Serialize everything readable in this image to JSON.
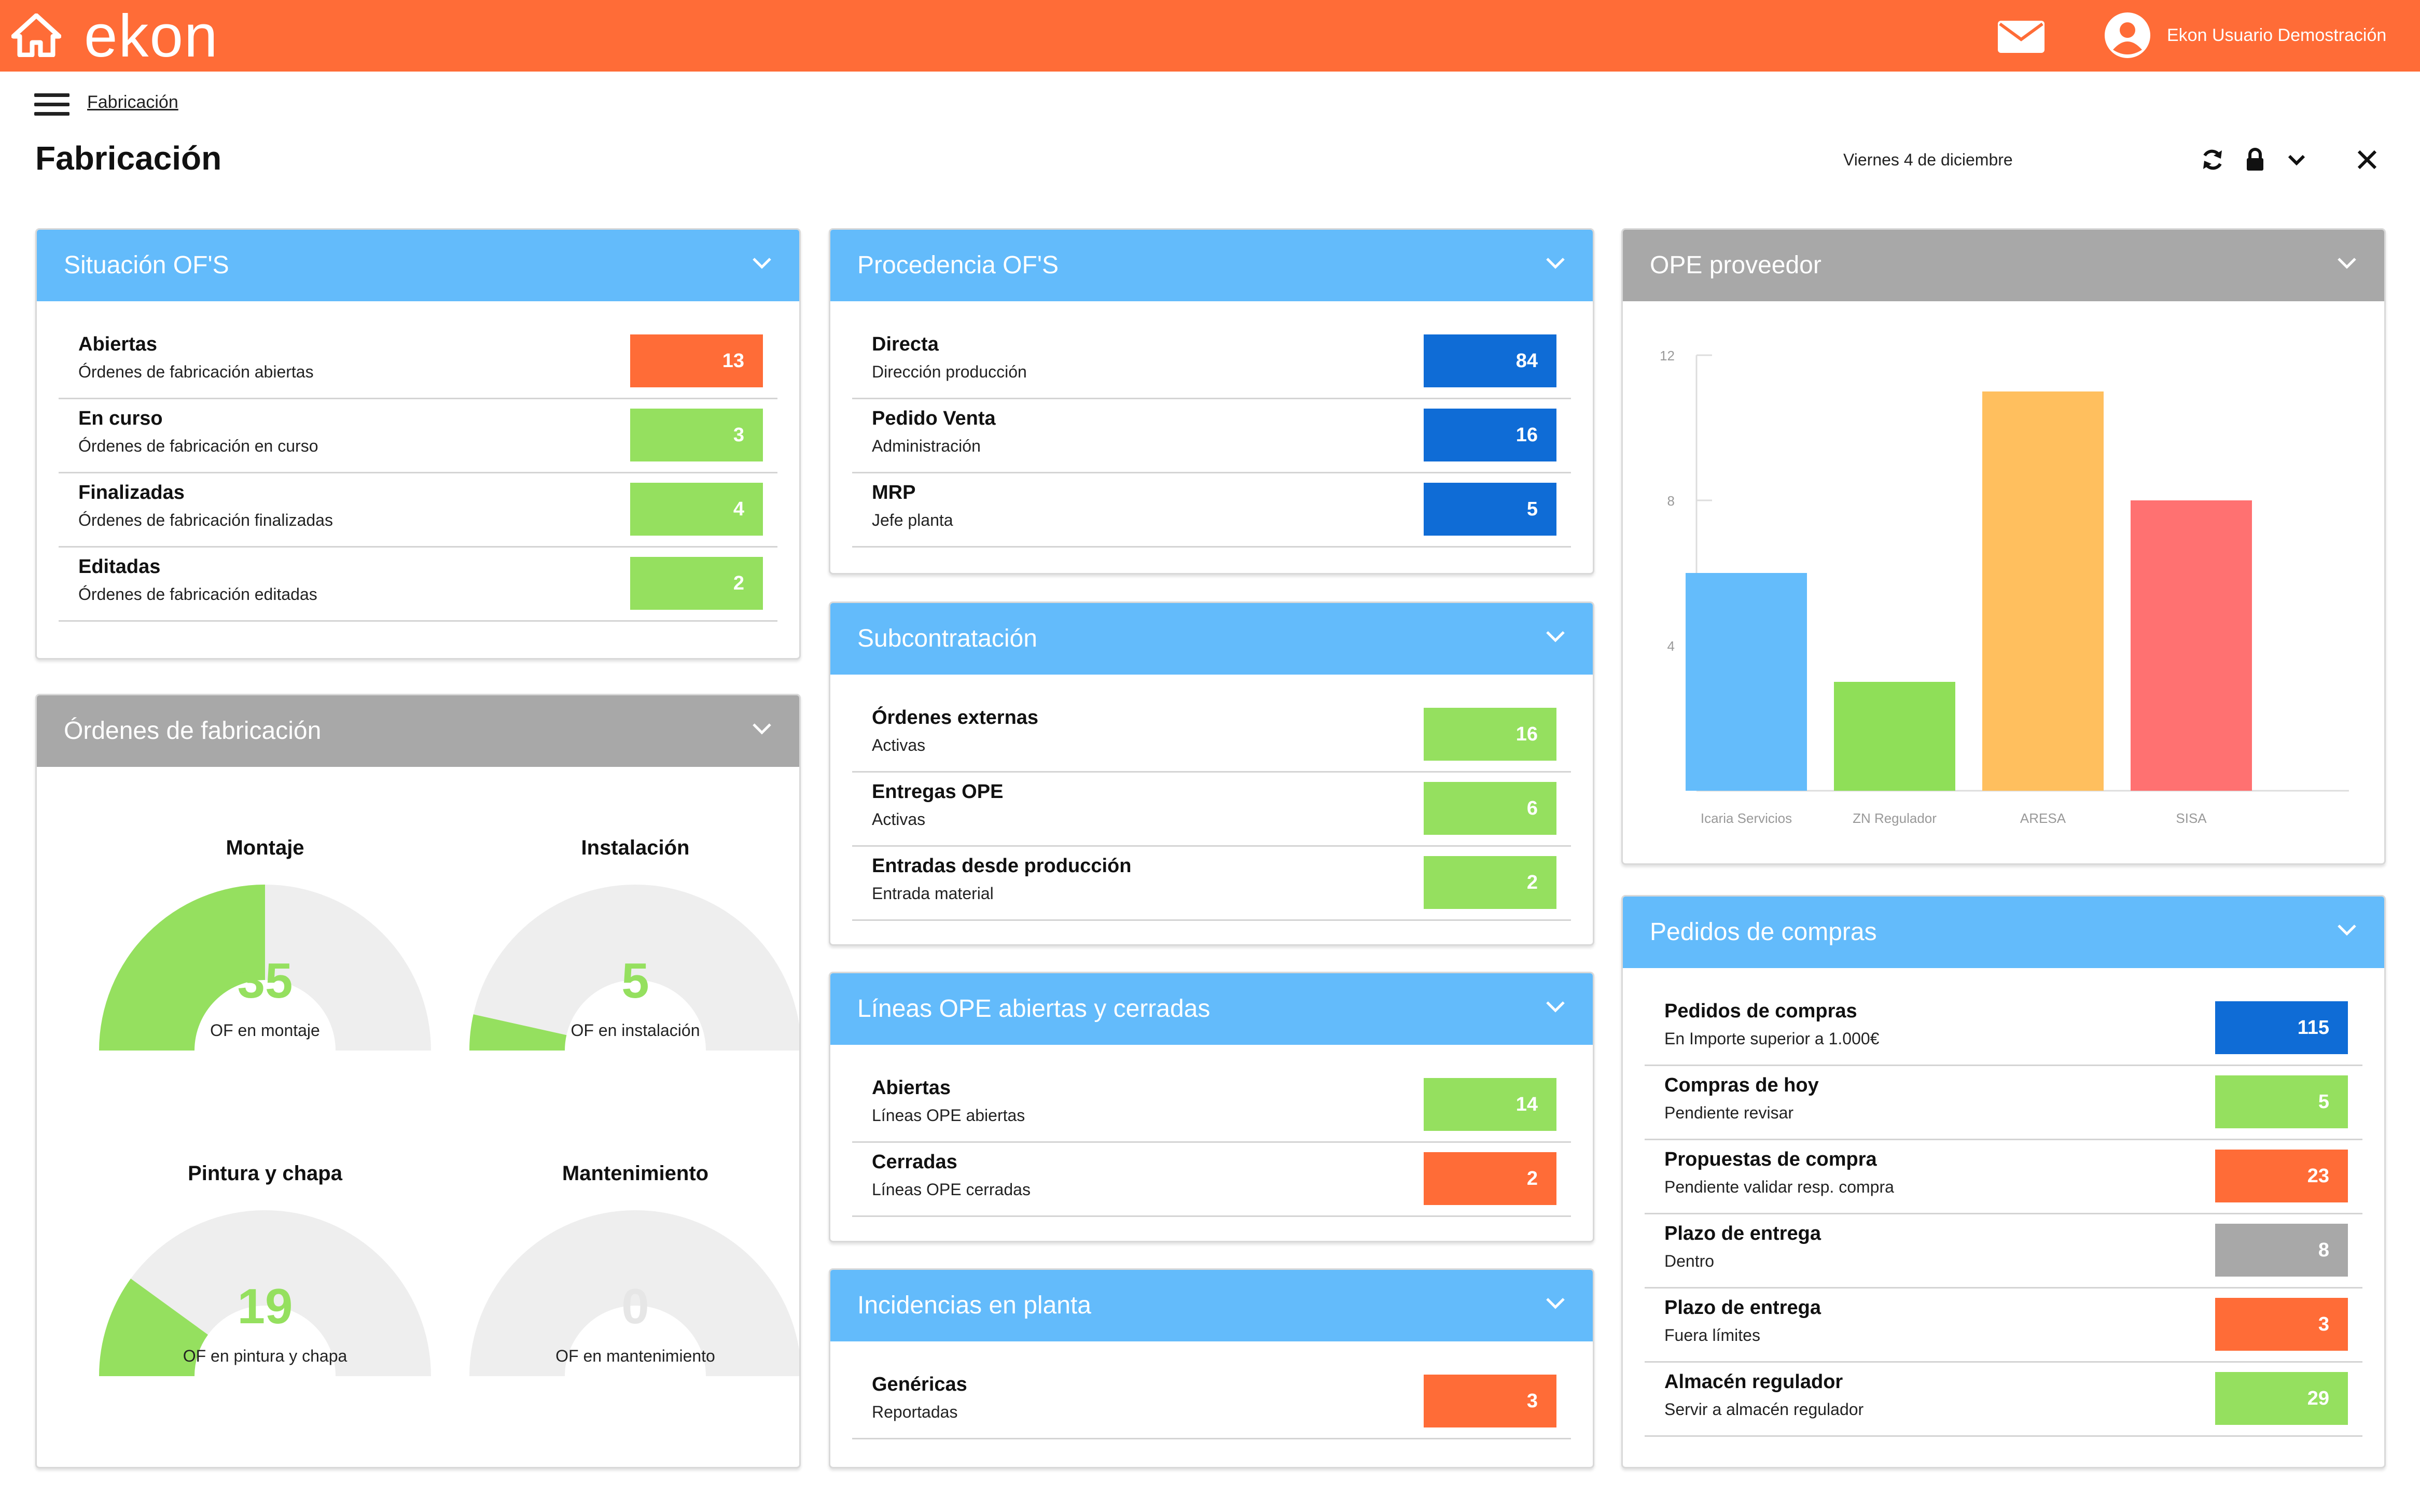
{
  "app": {
    "logo": "ekon",
    "user_name": "Ekon Usuario Demostración",
    "brand_color": "#ff6c37"
  },
  "header": {
    "breadcrumb": "Fabricación",
    "title": "Fabricación",
    "date": "Viernes 4 de diciembre"
  },
  "situacion": {
    "title": "Situación OF'S",
    "rows": [
      {
        "title": "Abiertas",
        "sub": "Órdenes de fabricación abiertas",
        "value": "13",
        "color": "#ff6c37"
      },
      {
        "title": "En curso",
        "sub": "Órdenes de fabricación en curso",
        "value": "3",
        "color": "#95e05f"
      },
      {
        "title": "Finalizadas",
        "sub": "Órdenes de fabricación finalizadas",
        "value": "4",
        "color": "#95e05f"
      },
      {
        "title": "Editadas",
        "sub": "Órdenes de fabricación editadas",
        "value": "2",
        "color": "#95e05f"
      }
    ]
  },
  "ordenes": {
    "title": "Órdenes de fabricación",
    "gauges": [
      {
        "title": "Montaje",
        "value": "35",
        "label": "OF en montaje",
        "fraction": 0.5
      },
      {
        "title": "Instalación",
        "value": "5",
        "label": "OF en instalación",
        "fraction": 0.07
      },
      {
        "title": "Pintura y chapa",
        "value": "19",
        "label": "OF en pintura y chapa",
        "fraction": 0.2
      },
      {
        "title": "Mantenimiento",
        "value": "0",
        "label": "OF en mantenimiento",
        "fraction": 0
      }
    ]
  },
  "procedencia": {
    "title": "Procedencia OF'S",
    "rows": [
      {
        "title": "Directa",
        "sub": "Dirección producción",
        "value": "84",
        "color": "#0f6cd6"
      },
      {
        "title": "Pedido Venta",
        "sub": "Administración",
        "value": "16",
        "color": "#0f6cd6"
      },
      {
        "title": "MRP",
        "sub": "Jefe planta",
        "value": "5",
        "color": "#0f6cd6"
      }
    ]
  },
  "subcontratacion": {
    "title": "Subcontratación",
    "rows": [
      {
        "title": "Órdenes externas",
        "sub": "Activas",
        "value": "16",
        "color": "#95e05f"
      },
      {
        "title": "Entregas OPE",
        "sub": "Activas",
        "value": "6",
        "color": "#95e05f"
      },
      {
        "title": "Entradas desde producción",
        "sub": "Entrada material",
        "value": "2",
        "color": "#95e05f"
      }
    ]
  },
  "lineas": {
    "title": "Líneas OPE abiertas y cerradas",
    "rows": [
      {
        "title": "Abiertas",
        "sub": "Líneas OPE abiertas",
        "value": "14",
        "color": "#95e05f"
      },
      {
        "title": "Cerradas",
        "sub": "Líneas OPE cerradas",
        "value": "2",
        "color": "#ff6c37"
      }
    ]
  },
  "incidencias": {
    "title": "Incidencias en planta",
    "rows": [
      {
        "title": "Genéricas",
        "sub": "Reportadas",
        "value": "3",
        "color": "#ff6c37"
      }
    ]
  },
  "ope_proveedor": {
    "title": "OPE proveedor"
  },
  "chart_data": {
    "type": "bar",
    "categories": [
      "Icaria Servicios",
      "ZN Regulador",
      "ARESA",
      "SISA"
    ],
    "values": [
      6,
      3,
      11,
      8
    ],
    "colors": [
      "#64bcfb",
      "#8fdf58",
      "#ffbf5e",
      "#ff7171"
    ],
    "yticks": [
      4,
      8,
      12
    ],
    "ylim": [
      0,
      12
    ],
    "grid": false
  },
  "pedidos": {
    "title": "Pedidos de compras",
    "rows": [
      {
        "title": "Pedidos de compras",
        "sub": "En Importe superior a 1.000€",
        "value": "115",
        "color": "#0f6cd6"
      },
      {
        "title": "Compras de hoy",
        "sub": "Pendiente revisar",
        "value": "5",
        "color": "#95e05f"
      },
      {
        "title": "Propuestas de compra",
        "sub": "Pendiente validar resp. compra",
        "value": "23",
        "color": "#ff6c37"
      },
      {
        "title": "Plazo de entrega",
        "sub": "Dentro",
        "value": "8",
        "color": "#a8a8a8"
      },
      {
        "title": "Plazo de entrega",
        "sub": "Fuera límites",
        "value": "3",
        "color": "#ff6c37"
      },
      {
        "title": "Almacén regulador",
        "sub": "Servir a almacén regulador",
        "value": "29",
        "color": "#95e05f"
      }
    ]
  }
}
